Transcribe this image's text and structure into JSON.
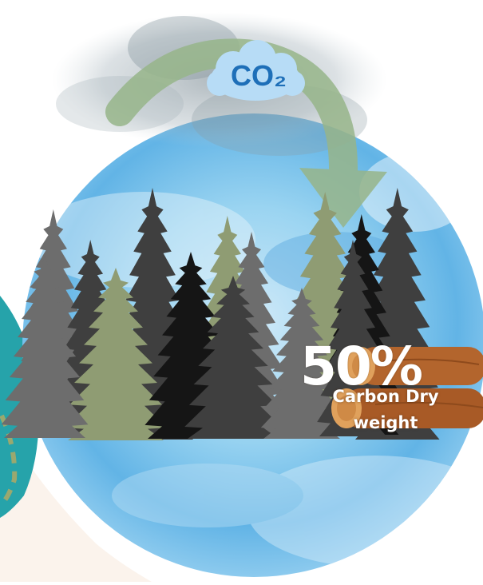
{
  "scene": {
    "cloud_label": "CO₂",
    "carbon_percentage": "50%",
    "carbon_caption": "Carbon Dry weight"
  },
  "colors": {
    "sky_light": "#d8eefa",
    "sky_mid": "#8fcdee",
    "sky_deep": "#4aa6e0",
    "co2_cloud": "#b7dcf6",
    "co2_text": "#1e6fb8",
    "arrow": "#97b58a",
    "tree_green": "#8f9c73",
    "tree_dark": "#3f3f3f",
    "tree_grey": "#6d6d6d",
    "tree_black": "#151515",
    "log_wood": "#b3652d",
    "log_end": "#e0a15c",
    "teal_shape": "#26a3aa",
    "cream_shape": "#fbf3ec"
  }
}
